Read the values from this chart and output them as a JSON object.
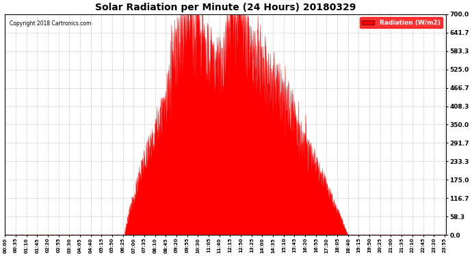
{
  "title": "Solar Radiation per Minute (24 Hours) 20180329",
  "copyright_text": "Copyright 2018 Cartronics.com",
  "legend_label": "Radiation (W/m2)",
  "fill_color": "#ff0000",
  "line_color": "#ff0000",
  "background_color": "#ffffff",
  "grid_color": "#bbbbbb",
  "yticks": [
    0.0,
    58.3,
    116.7,
    175.0,
    233.3,
    291.7,
    350.0,
    408.3,
    466.7,
    525.0,
    583.3,
    641.7,
    700.0
  ],
  "ylim": [
    0.0,
    700.0
  ],
  "total_minutes": 1440,
  "sunrise_minute": 390,
  "sunset_minute": 1120,
  "xtick_interval": 35
}
